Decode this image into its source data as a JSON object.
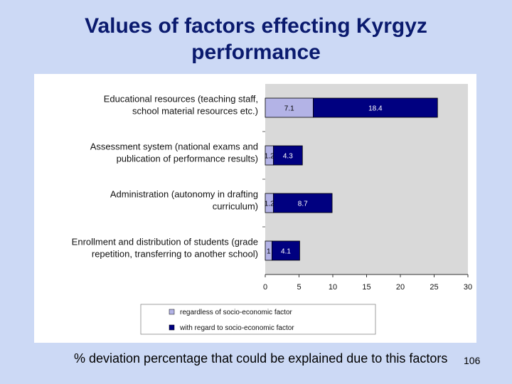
{
  "slide": {
    "title_line1": "Values of factors effecting Kyrgyz",
    "title_line2": "performance",
    "footer": "% deviation percentage that could be explained due to this factors",
    "page_number": "106"
  },
  "colors": {
    "background": "#ccd9f5",
    "title": "#0a1a6e",
    "plot_area": "#d9d9d9",
    "series_1": "#b3b3e6",
    "series_2": "#000080"
  },
  "chart_data": {
    "type": "bar",
    "orientation": "horizontal",
    "stacked": true,
    "categories": [
      [
        "Educational resources (teaching staff,",
        "school material resources etc.)"
      ],
      [
        "Assessment system (national exams and",
        "publication of performance results)"
      ],
      [
        "Administration (autonomy in drafting",
        "curriculum)"
      ],
      [
        "Enrollment and distribution of students (grade",
        "repetition, transferring to another school)"
      ]
    ],
    "series": [
      {
        "name": "regardless of socio-economic factor",
        "values": [
          7.1,
          1.2,
          1.2,
          1
        ],
        "labels": [
          "7.1",
          "1.2",
          "1.2",
          "1"
        ]
      },
      {
        "name": "with regard to socio-economic factor",
        "values": [
          18.4,
          4.3,
          8.7,
          4.1
        ],
        "labels": [
          "18.4",
          "4.3",
          "8.7",
          "4.1"
        ]
      }
    ],
    "xlim": [
      0,
      30
    ],
    "xticks": [
      0,
      5,
      10,
      15,
      20,
      25,
      30
    ],
    "legend_position": "bottom",
    "grid": false
  }
}
